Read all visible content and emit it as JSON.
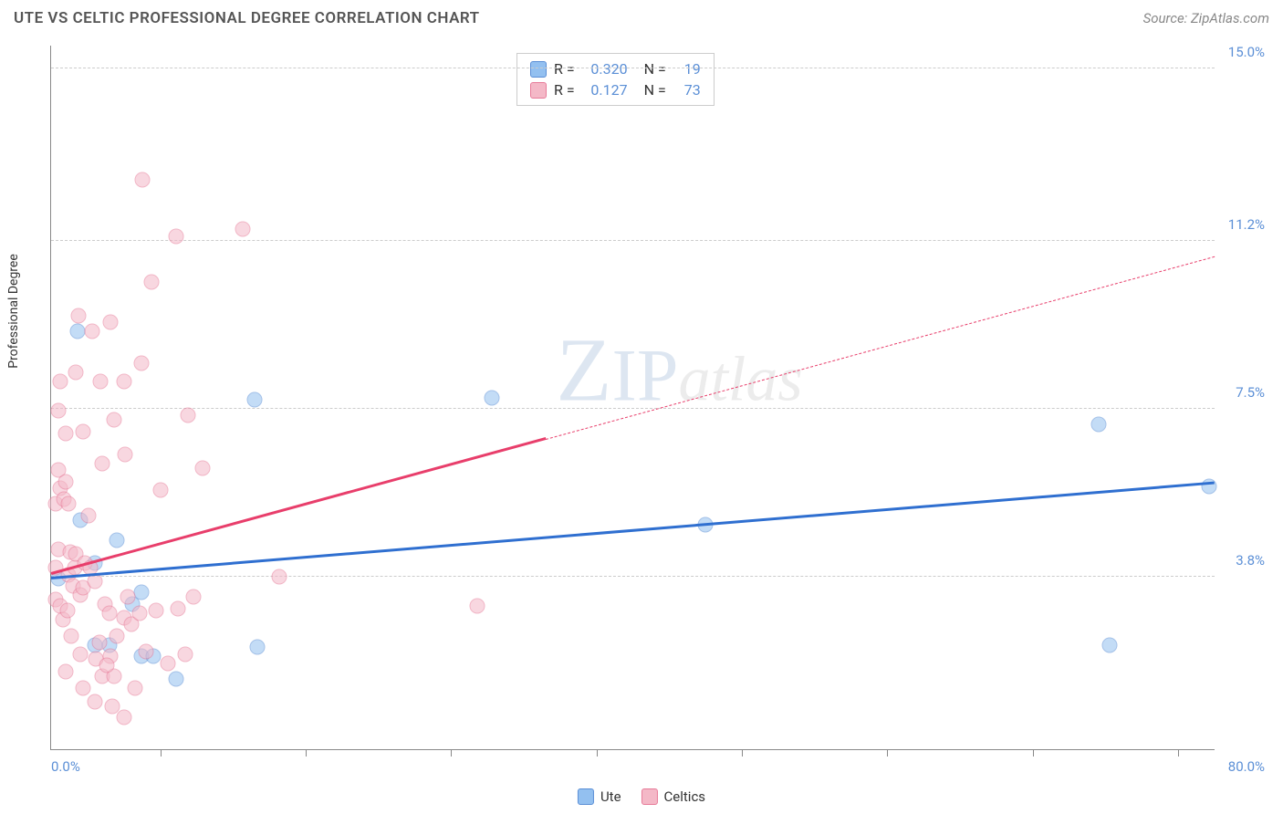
{
  "header": {
    "title": "UTE VS CELTIC PROFESSIONAL DEGREE CORRELATION CHART",
    "source": "Source: ZipAtlas.com"
  },
  "watermark": {
    "zip_part": "ZIP",
    "atlas_part": "atlas"
  },
  "chart": {
    "type": "scatter",
    "y_axis_label": "Professional Degree",
    "xlim": [
      0,
      80
    ],
    "ylim": [
      0,
      15.5
    ],
    "x_min_label": "0.0%",
    "x_max_label": "80.0%",
    "x_tick_positions": [
      0.0938,
      0.2188,
      0.3438,
      0.4688,
      0.5938,
      0.7188,
      0.8438,
      0.9688
    ],
    "y_gridlines": [
      {
        "value": 3.8,
        "label": "3.8%"
      },
      {
        "value": 7.5,
        "label": "7.5%"
      },
      {
        "value": 11.2,
        "label": "11.2%"
      },
      {
        "value": 15.0,
        "label": "15.0%"
      }
    ],
    "background_color": "#ffffff",
    "grid_color": "#cccccc",
    "axis_color": "#888888",
    "label_color": "#5b8fd6",
    "series": {
      "ute": {
        "color_fill": "#93c0f0",
        "color_stroke": "#5b8fd6",
        "color_line": "#2f6fd0",
        "marker_size": 17,
        "R_label": "R =",
        "R_value": "0.320",
        "N_label": "N =",
        "N_value": "19",
        "trend": {
          "x1": 0,
          "y1": 3.75,
          "x2": 80,
          "y2": 5.85,
          "solid_until_x": 80
        },
        "points": [
          [
            0.5,
            3.75
          ],
          [
            1.8,
            9.2
          ],
          [
            4.5,
            4.6
          ],
          [
            4.0,
            2.3
          ],
          [
            6.2,
            2.05
          ],
          [
            7.0,
            2.05
          ],
          [
            8.6,
            1.55
          ],
          [
            5.6,
            3.2
          ],
          [
            6.2,
            3.45
          ],
          [
            3.0,
            2.3
          ],
          [
            14.0,
            7.7
          ],
          [
            14.2,
            2.25
          ],
          [
            30.3,
            7.75
          ],
          [
            45.0,
            4.95
          ],
          [
            72.0,
            7.15
          ],
          [
            72.8,
            2.3
          ],
          [
            79.6,
            5.8
          ],
          [
            2.0,
            5.05
          ],
          [
            3.0,
            4.1
          ]
        ]
      },
      "celtics": {
        "color_fill": "#f4b8c7",
        "color_stroke": "#e77b99",
        "color_line": "#e83e6b",
        "marker_size": 17,
        "R_label": "R =",
        "R_value": "0.127",
        "N_label": "N =",
        "N_value": "73",
        "trend": {
          "x1": 0,
          "y1": 3.85,
          "x2": 80,
          "y2": 10.85,
          "solid_until_x": 34
        },
        "points": [
          [
            0.3,
            4.0
          ],
          [
            0.3,
            5.4
          ],
          [
            0.5,
            4.4
          ],
          [
            0.6,
            5.75
          ],
          [
            0.5,
            6.15
          ],
          [
            0.9,
            5.5
          ],
          [
            1.0,
            5.9
          ],
          [
            1.2,
            5.4
          ],
          [
            1.3,
            4.35
          ],
          [
            1.2,
            3.85
          ],
          [
            0.3,
            3.3
          ],
          [
            0.6,
            3.15
          ],
          [
            0.8,
            2.85
          ],
          [
            1.1,
            3.05
          ],
          [
            1.5,
            3.6
          ],
          [
            1.6,
            4.0
          ],
          [
            1.7,
            4.3
          ],
          [
            2.0,
            3.4
          ],
          [
            2.2,
            3.55
          ],
          [
            2.3,
            4.1
          ],
          [
            2.6,
            5.15
          ],
          [
            2.7,
            4.0
          ],
          [
            3.0,
            3.7
          ],
          [
            3.1,
            2.0
          ],
          [
            3.3,
            2.35
          ],
          [
            3.5,
            1.6
          ],
          [
            3.7,
            3.2
          ],
          [
            4.0,
            3.0
          ],
          [
            4.1,
            2.05
          ],
          [
            4.3,
            1.6
          ],
          [
            4.5,
            2.5
          ],
          [
            5.0,
            2.9
          ],
          [
            5.3,
            3.35
          ],
          [
            5.5,
            2.75
          ],
          [
            6.1,
            3.0
          ],
          [
            6.5,
            2.15
          ],
          [
            7.2,
            3.05
          ],
          [
            8.0,
            1.9
          ],
          [
            8.7,
            3.1
          ],
          [
            9.2,
            2.1
          ],
          [
            9.8,
            3.35
          ],
          [
            1.7,
            8.3
          ],
          [
            0.6,
            8.1
          ],
          [
            2.2,
            7.0
          ],
          [
            3.4,
            8.1
          ],
          [
            4.3,
            7.25
          ],
          [
            5.0,
            8.1
          ],
          [
            6.2,
            8.5
          ],
          [
            2.8,
            9.2
          ],
          [
            4.1,
            9.4
          ],
          [
            6.9,
            10.3
          ],
          [
            8.6,
            11.3
          ],
          [
            13.2,
            11.45
          ],
          [
            6.3,
            12.55
          ],
          [
            1.9,
            9.55
          ],
          [
            3.5,
            6.3
          ],
          [
            5.1,
            6.5
          ],
          [
            7.5,
            5.7
          ],
          [
            9.4,
            7.35
          ],
          [
            10.4,
            6.2
          ],
          [
            15.7,
            3.8
          ],
          [
            29.3,
            3.15
          ],
          [
            3.0,
            1.05
          ],
          [
            4.2,
            0.95
          ],
          [
            5.0,
            0.7
          ],
          [
            2.2,
            1.35
          ],
          [
            1.0,
            1.7
          ],
          [
            1.4,
            2.5
          ],
          [
            2.0,
            2.1
          ],
          [
            3.8,
            1.85
          ],
          [
            5.8,
            1.35
          ],
          [
            1.0,
            6.95
          ],
          [
            0.5,
            7.45
          ]
        ]
      }
    }
  },
  "bottom_legend": [
    {
      "label": "Ute",
      "series": "ute"
    },
    {
      "label": "Celtics",
      "series": "celtics"
    }
  ]
}
